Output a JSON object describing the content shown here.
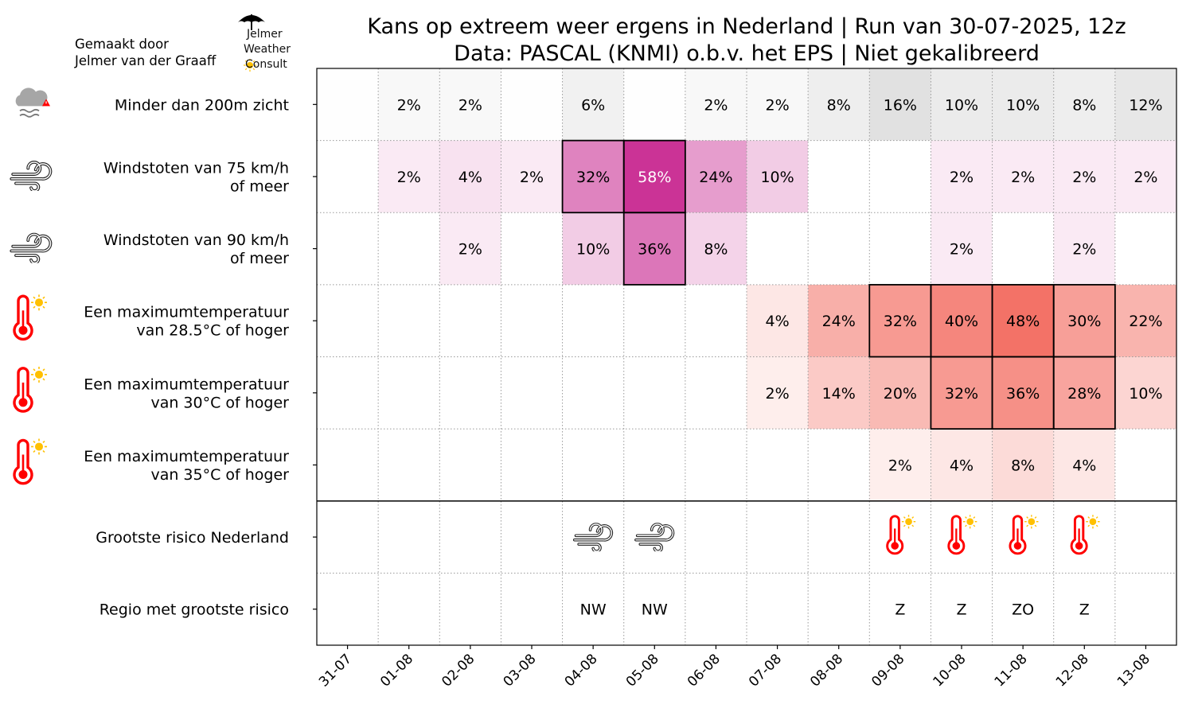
{
  "credit": {
    "line1": "Gemaakt door",
    "line2": "Jelmer van der Graaff"
  },
  "logo": {
    "line1": "Jelmer",
    "line2": "Weather",
    "line3": "Consult",
    "icons": [
      "umbrella-icon",
      "sun-icon"
    ]
  },
  "chart_data": {
    "type": "heatmap",
    "title": "Kans op extreem weer ergens in Nederland | Run van 30-07-2025, 12z",
    "subtitle": "Data: PASCAL (KNMI) o.b.v. het EPS | Niet gekalibreerd",
    "unit": "%",
    "categories": [
      "31-07",
      "01-08",
      "02-08",
      "03-08",
      "04-08",
      "05-08",
      "06-08",
      "07-08",
      "08-08",
      "09-08",
      "10-08",
      "11-08",
      "12-08",
      "13-08"
    ],
    "rows": [
      {
        "label": [
          "Minder dan 200m zicht"
        ],
        "icon": "fog-warning-icon",
        "scale": "grey",
        "values": [
          null,
          2,
          2,
          null,
          6,
          null,
          2,
          2,
          8,
          16,
          10,
          10,
          8,
          12
        ],
        "highlight": [
          false,
          false,
          false,
          false,
          false,
          false,
          false,
          false,
          false,
          false,
          false,
          false,
          false,
          false
        ]
      },
      {
        "label": [
          "Windstoten van 75 km/h",
          "of meer"
        ],
        "icon": "wind-icon",
        "scale": "pink",
        "values": [
          null,
          2,
          4,
          2,
          32,
          58,
          24,
          10,
          null,
          null,
          2,
          2,
          2,
          2
        ],
        "highlight": [
          false,
          false,
          false,
          false,
          true,
          true,
          false,
          false,
          false,
          false,
          false,
          false,
          false,
          false
        ]
      },
      {
        "label": [
          "Windstoten van 90 km/h",
          "of meer"
        ],
        "icon": "wind-icon",
        "scale": "pink",
        "values": [
          null,
          null,
          2,
          null,
          10,
          36,
          8,
          null,
          null,
          null,
          2,
          null,
          2,
          null
        ],
        "highlight": [
          false,
          false,
          false,
          false,
          false,
          true,
          false,
          false,
          false,
          false,
          false,
          false,
          false,
          false
        ]
      },
      {
        "label": [
          "Een maximumtemperatuur",
          "van 28.5°C of hoger"
        ],
        "icon": "thermometer-sun-icon",
        "scale": "orange",
        "values": [
          null,
          null,
          null,
          null,
          null,
          null,
          null,
          4,
          24,
          32,
          40,
          48,
          30,
          22
        ],
        "highlight": [
          false,
          false,
          false,
          false,
          false,
          false,
          false,
          false,
          false,
          true,
          true,
          true,
          true,
          false
        ]
      },
      {
        "label": [
          "Een maximumtemperatuur",
          "van 30°C of hoger"
        ],
        "icon": "thermometer-sun-icon",
        "scale": "orange",
        "values": [
          null,
          null,
          null,
          null,
          null,
          null,
          null,
          2,
          14,
          20,
          32,
          36,
          28,
          10
        ],
        "highlight": [
          false,
          false,
          false,
          false,
          false,
          false,
          false,
          false,
          false,
          false,
          true,
          true,
          true,
          false
        ]
      },
      {
        "label": [
          "Een maximumtemperatuur",
          "van 35°C of hoger"
        ],
        "icon": "thermometer-sun-icon",
        "scale": "orange",
        "values": [
          null,
          null,
          null,
          null,
          null,
          null,
          null,
          null,
          null,
          2,
          4,
          8,
          4,
          null
        ],
        "highlight": [
          false,
          false,
          false,
          false,
          false,
          false,
          false,
          false,
          false,
          false,
          false,
          false,
          false,
          false
        ]
      }
    ],
    "summary_rows": [
      {
        "label": "Grootste risico Nederland",
        "kind": "icon",
        "values": [
          null,
          null,
          null,
          null,
          "wind-icon",
          "wind-icon",
          null,
          null,
          null,
          "thermometer-sun-icon",
          "thermometer-sun-icon",
          "thermometer-sun-icon",
          "thermometer-sun-icon",
          null
        ]
      },
      {
        "label": "Regio met grootste risico",
        "kind": "text",
        "values": [
          null,
          null,
          null,
          null,
          "NW",
          "NW",
          null,
          null,
          null,
          "Z",
          "Z",
          "ZO",
          "Z",
          null
        ]
      }
    ],
    "colors": {
      "grey_max": "#bdbdbd",
      "pink_max": "#c51b8a",
      "orange_max": "#ef3b2c",
      "highlight_border": "#000000",
      "grid": "#999999",
      "thermo": "#ff0000",
      "sun": "#ffc000"
    },
    "grid": true
  }
}
